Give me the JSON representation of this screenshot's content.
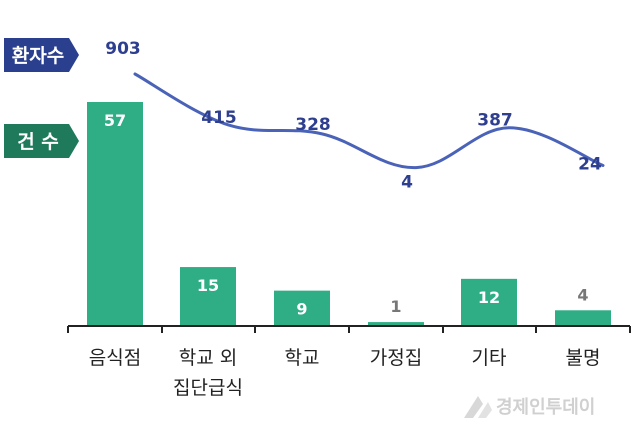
{
  "legend": {
    "patients_label": "환자수",
    "cases_label": "건 수"
  },
  "watermark": "경제인투데이",
  "colors": {
    "bar": "#2fae86",
    "line": "#4a63b8",
    "line_label": "#2e3f8f",
    "patients_badge": "#2b3f8f",
    "cases_badge": "#1e7a5a",
    "small_value_label": "#777777",
    "axis": "#222222"
  },
  "chart_data": {
    "type": "bar",
    "categories": [
      [
        "음식점"
      ],
      [
        "학교 외",
        "집단급식"
      ],
      [
        "학교"
      ],
      [
        "가정집"
      ],
      [
        "기타"
      ],
      [
        "불명"
      ]
    ],
    "series": [
      {
        "name": "건 수",
        "type": "bar",
        "values": [
          57,
          15,
          9,
          1,
          12,
          4
        ]
      },
      {
        "name": "환자수",
        "type": "line",
        "values": [
          903,
          415,
          328,
          4,
          387,
          24
        ]
      }
    ],
    "axes_visible": false,
    "grid": false
  }
}
